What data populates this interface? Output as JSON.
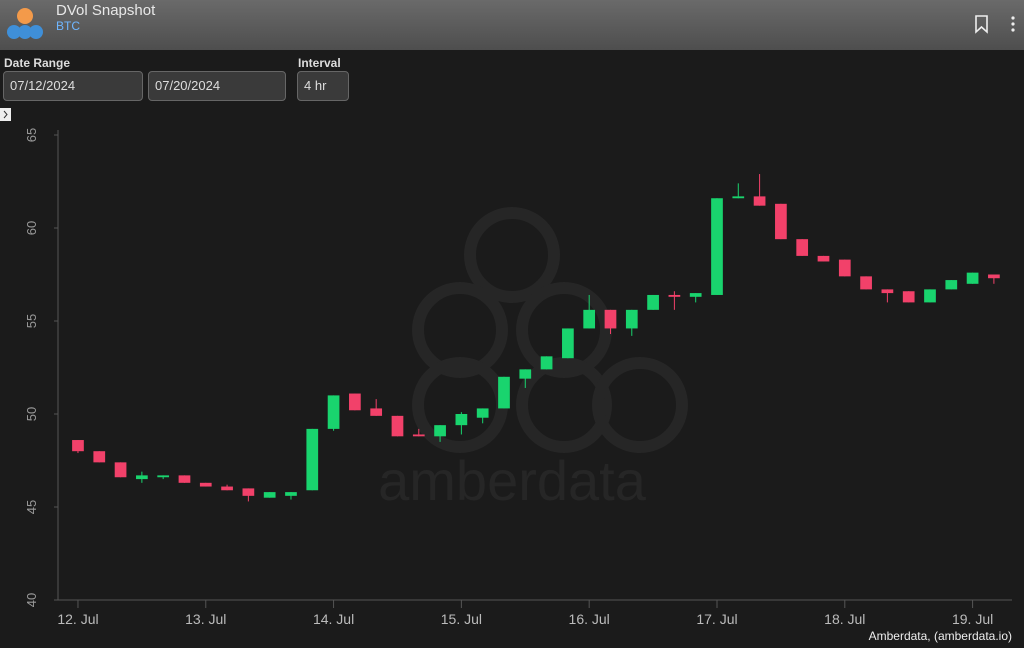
{
  "header": {
    "title": "DVol Snapshot",
    "subtitle": "BTC"
  },
  "controls": {
    "date_range_label": "Date Range",
    "start_date": "07/12/2024",
    "end_date": "07/20/2024",
    "interval_label": "Interval",
    "interval": "4 hr"
  },
  "chart_data": {
    "type": "candlestick",
    "watermark": "amberdata",
    "credits": "Amberdata, (amberdata.io)",
    "x": [
      0,
      4,
      8,
      12,
      16,
      20,
      24,
      28,
      32,
      36,
      40,
      44,
      48,
      52,
      56,
      60,
      64,
      68,
      72,
      76,
      80,
      84,
      88,
      92,
      96,
      100,
      104,
      108,
      112,
      116,
      120,
      124,
      128,
      132,
      136,
      140,
      144,
      148,
      152,
      156,
      160,
      164,
      168,
      172
    ],
    "open": [
      48.6,
      48.0,
      47.4,
      46.5,
      46.6,
      46.7,
      46.3,
      46.1,
      46.0,
      45.5,
      45.6,
      45.9,
      49.2,
      51.1,
      50.3,
      49.9,
      48.9,
      48.8,
      49.4,
      49.8,
      50.3,
      51.9,
      52.4,
      53.0,
      54.6,
      55.6,
      54.6,
      55.6,
      56.4,
      56.3,
      56.4,
      61.6,
      61.7,
      61.3,
      59.4,
      58.5,
      58.3,
      57.4,
      56.7,
      56.6,
      56.0,
      56.7,
      57.0,
      57.5
    ],
    "high": [
      48.6,
      48.0,
      47.4,
      46.9,
      46.7,
      46.7,
      46.3,
      46.2,
      46.0,
      45.8,
      45.8,
      49.2,
      51.0,
      51.1,
      50.8,
      49.9,
      49.2,
      49.4,
      50.1,
      50.3,
      52.0,
      52.4,
      53.1,
      54.6,
      56.4,
      55.6,
      55.6,
      56.4,
      56.6,
      56.5,
      61.6,
      62.4,
      62.9,
      61.3,
      59.4,
      58.5,
      58.3,
      57.4,
      56.7,
      56.6,
      56.7,
      57.2,
      57.6,
      57.5
    ],
    "low": [
      47.9,
      47.4,
      46.6,
      46.3,
      46.5,
      46.3,
      46.1,
      45.9,
      45.3,
      45.5,
      45.4,
      45.9,
      49.1,
      50.2,
      49.9,
      48.8,
      48.8,
      48.5,
      48.9,
      49.5,
      50.3,
      51.4,
      52.4,
      53.0,
      54.6,
      54.3,
      54.2,
      55.6,
      55.6,
      56.0,
      56.4,
      61.6,
      61.2,
      59.4,
      58.5,
      58.2,
      57.4,
      56.7,
      56.0,
      56.0,
      56.0,
      56.7,
      57.0,
      57.0
    ],
    "close": [
      48.0,
      47.4,
      46.6,
      46.7,
      46.7,
      46.3,
      46.1,
      45.9,
      45.6,
      45.8,
      45.8,
      49.2,
      51.0,
      50.2,
      49.9,
      48.8,
      48.8,
      49.4,
      50.0,
      50.3,
      52.0,
      52.4,
      53.1,
      54.6,
      55.6,
      54.6,
      55.6,
      56.4,
      56.3,
      56.5,
      61.6,
      61.7,
      61.2,
      59.4,
      58.5,
      58.2,
      57.4,
      56.7,
      56.5,
      56.0,
      56.7,
      57.2,
      57.6,
      57.3
    ],
    "up_color": "#19d46e",
    "down_color": "#f2416a",
    "xlim": [
      -3.75,
      175.4
    ],
    "xticks": [
      {
        "value": 0,
        "label": "12. Jul"
      },
      {
        "value": 24,
        "label": "13. Jul"
      },
      {
        "value": 48,
        "label": "14. Jul"
      },
      {
        "value": 72,
        "label": "15. Jul"
      },
      {
        "value": 96,
        "label": "16. Jul"
      },
      {
        "value": 120,
        "label": "17. Jul"
      },
      {
        "value": 144,
        "label": "18. Jul"
      },
      {
        "value": 168,
        "label": "19. Jul"
      }
    ],
    "ylim": [
      40,
      65
    ],
    "yticks": [
      40,
      45,
      50,
      55,
      60,
      65
    ],
    "grid": false
  }
}
